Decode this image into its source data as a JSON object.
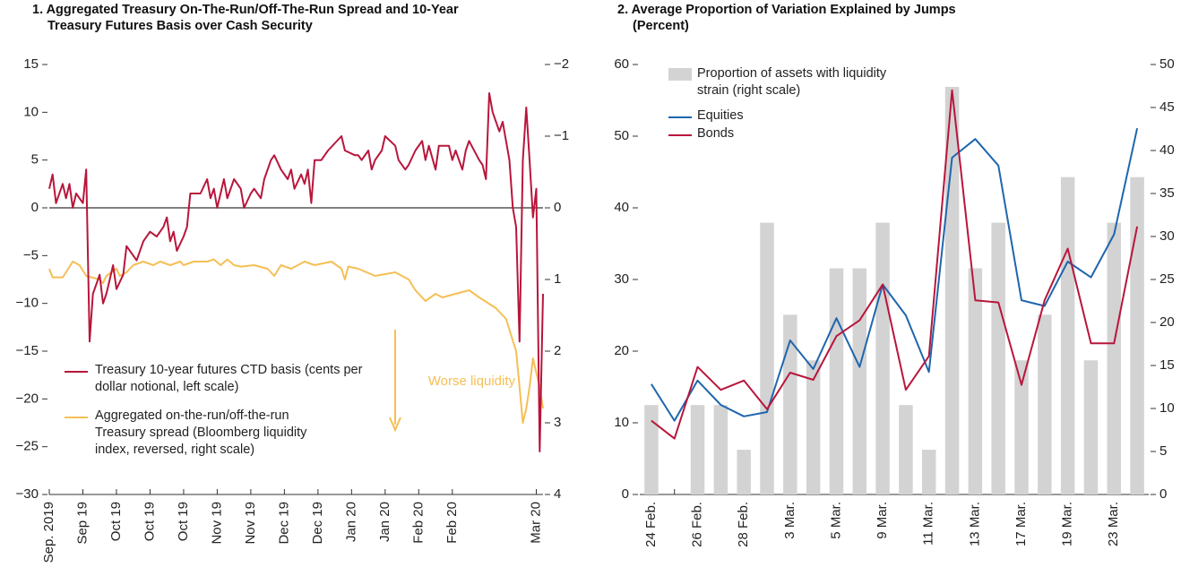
{
  "chart_data": [
    {
      "type": "line",
      "title": "1. Aggregated Treasury On-The-Run/Off-The-Run Spread and 10-Year Treasury Futures Basis over Cash Security",
      "annotation": "Worse liquidity",
      "xlim": [
        0,
        147
      ],
      "xticks": [
        {
          "value": 0,
          "label": "Sep. 2019"
        },
        {
          "value": 10,
          "label": "Sep 19"
        },
        {
          "value": 20,
          "label": "Oct 19"
        },
        {
          "value": 30,
          "label": "Oct 19"
        },
        {
          "value": 40,
          "label": "Oct 19"
        },
        {
          "value": 50,
          "label": "Nov 19"
        },
        {
          "value": 60,
          "label": "Nov 19"
        },
        {
          "value": 70,
          "label": "Dec 19"
        },
        {
          "value": 80,
          "label": "Dec 19"
        },
        {
          "value": 90,
          "label": "Jan 20"
        },
        {
          "value": 100,
          "label": "Jan 20"
        },
        {
          "value": 110,
          "label": "Feb 20"
        },
        {
          "value": 120,
          "label": "Feb 20"
        },
        {
          "value": 145,
          "label": "Mar 20"
        }
      ],
      "ylim": [
        -30,
        15
      ],
      "yticks": [
        {
          "value": -30,
          "label": "−30"
        },
        {
          "value": -25,
          "label": "−25"
        },
        {
          "value": -20,
          "label": "−20"
        },
        {
          "value": -15,
          "label": "−15"
        },
        {
          "value": -10,
          "label": "−10"
        },
        {
          "value": -5,
          "label": "−5"
        },
        0,
        5,
        10,
        15
      ],
      "y2lim": [
        4,
        -2
      ],
      "y2ticks": [
        {
          "value": -2,
          "label": "−2"
        },
        {
          "value": -1,
          "label": "−1"
        },
        0,
        1,
        2,
        3,
        4
      ],
      "series": [
        {
          "name": "Treasury 10-year futures CTD basis (cents per dollar notional, left scale)",
          "color": "#b8163c",
          "axis": "y",
          "x": [
            0,
            1,
            2,
            4,
            5,
            6,
            7,
            8,
            9,
            10,
            11,
            12,
            13,
            14,
            15,
            16,
            17,
            18,
            19,
            20,
            22,
            23,
            25,
            26,
            28,
            30,
            32,
            34,
            35,
            36,
            37,
            38,
            40,
            41,
            42,
            45,
            47,
            48,
            49,
            50,
            52,
            53,
            55,
            57,
            58,
            60,
            61,
            63,
            64,
            66,
            67,
            69,
            71,
            72,
            73,
            75,
            76,
            77,
            78,
            79,
            81,
            83,
            87,
            88,
            91,
            92,
            93,
            95,
            96,
            97,
            99,
            100,
            103,
            104,
            106,
            107,
            109,
            111,
            112,
            113,
            115,
            116,
            119,
            120,
            121,
            123,
            124,
            125,
            128,
            129,
            130,
            131,
            132,
            134,
            135,
            137,
            138,
            139,
            140,
            141,
            142,
            143,
            144,
            145,
            146,
            147
          ],
          "values": [
            2,
            3.5,
            0.5,
            2.5,
            1,
            2.5,
            0,
            1.5,
            1,
            0.5,
            4,
            -14,
            -9,
            -8,
            -7,
            -10,
            -9,
            -7.5,
            -6,
            -8.5,
            -7,
            -4,
            -5,
            -5.5,
            -3.5,
            -2.5,
            -3,
            -2,
            -1,
            -3.5,
            -2.5,
            -4.5,
            -3,
            -2,
            1.5,
            1.5,
            3,
            1,
            2,
            0,
            3,
            1,
            3,
            2,
            0,
            1.5,
            2,
            1,
            3,
            5,
            5.5,
            4,
            3,
            4,
            2,
            3.5,
            2.5,
            4,
            0.5,
            5,
            5,
            6,
            7.5,
            6,
            5.5,
            5.5,
            5,
            6,
            4,
            5,
            6,
            7.5,
            6.5,
            5,
            4,
            4.5,
            6,
            7,
            5,
            6.5,
            4,
            6.5,
            6.5,
            5,
            6,
            4,
            6,
            7,
            5,
            4.5,
            3,
            12,
            10,
            8,
            9,
            5,
            0,
            -2,
            -14,
            5,
            10.5,
            5,
            -1,
            2,
            -25.5,
            -9
          ]
        },
        {
          "name": "Aggregated on-the-run/off-the-run Treasury spread (Bloomberg liquidity index, reversed, right scale)",
          "color": "#f5bf55",
          "axis": "y2",
          "x": [
            0,
            1,
            4,
            5,
            7,
            9,
            11,
            15,
            16,
            17,
            20,
            21,
            23,
            25,
            28,
            31,
            33,
            36,
            39,
            40,
            43,
            47,
            49,
            51,
            53,
            55,
            57,
            61,
            65,
            67,
            69,
            72,
            76,
            79,
            84,
            87,
            88,
            89,
            92,
            97,
            103,
            107,
            109,
            112,
            115,
            117,
            121,
            125,
            128,
            133,
            136,
            139,
            140,
            141,
            142,
            143,
            144,
            146,
            147
          ],
          "values": [
            0.85,
            0.97,
            0.97,
            0.9,
            0.75,
            0.8,
            0.95,
            1.0,
            1.05,
            0.95,
            0.85,
            0.95,
            0.9,
            0.8,
            0.75,
            0.8,
            0.75,
            0.8,
            0.75,
            0.8,
            0.75,
            0.75,
            0.72,
            0.8,
            0.72,
            0.8,
            0.82,
            0.8,
            0.85,
            0.95,
            0.8,
            0.85,
            0.75,
            0.8,
            0.75,
            0.85,
            1.0,
            0.82,
            0.85,
            0.95,
            0.9,
            1.0,
            1.15,
            1.3,
            1.2,
            1.25,
            1.2,
            1.15,
            1.25,
            1.4,
            1.55,
            2.0,
            2.5,
            3.0,
            2.8,
            2.5,
            2.1,
            2.5,
            2.8
          ]
        }
      ]
    },
    {
      "type": "bar_line",
      "title": "2. Average Proportion of Variation Explained by Jumps",
      "subtitle": "(Percent)",
      "categories": [
        "24 Feb.",
        null,
        "26 Feb.",
        null,
        "28 Feb.",
        null,
        "3 Mar.",
        null,
        "5 Mar.",
        null,
        "9 Mar.",
        null,
        "11 Mar.",
        null,
        "13 Mar.",
        null,
        "17 Mar.",
        null,
        "19 Mar.",
        null,
        "23 Mar.",
        null
      ],
      "ylim": [
        0,
        60
      ],
      "yticks": [
        0,
        10,
        20,
        30,
        40,
        50,
        60
      ],
      "y2lim": [
        0,
        50
      ],
      "y2ticks": [
        0,
        5,
        10,
        15,
        20,
        25,
        30,
        35,
        40,
        45,
        50
      ],
      "series": [
        {
          "name": "Proportion of assets with liquidity strain (right scale)",
          "type": "bar",
          "color": "#d3d3d3",
          "axis": "y2",
          "values": [
            10.4,
            0,
            10.4,
            10.4,
            5.2,
            31.6,
            20.9,
            15.6,
            26.3,
            26.3,
            31.6,
            10.4,
            5.2,
            47.4,
            26.3,
            31.6,
            15.6,
            20.9,
            36.9,
            15.6,
            31.6,
            36.9
          ]
        },
        {
          "name": "Equities",
          "type": "line",
          "color": "#1f66ad",
          "axis": "y",
          "values": [
            15.4,
            10.3,
            15.9,
            12.5,
            10.9,
            11.5,
            21.5,
            17.5,
            24.6,
            17.8,
            29.3,
            25,
            17.1,
            47,
            49.6,
            45.9,
            27.1,
            26.3,
            32.5,
            30.3,
            36.3,
            51.1
          ]
        },
        {
          "name": "Bonds",
          "type": "line",
          "color": "#b8163c",
          "axis": "y",
          "values": [
            10.3,
            7.8,
            17.8,
            14.6,
            15.9,
            11.9,
            17,
            16,
            22.1,
            24.3,
            29.3,
            14.6,
            19.3,
            56.4,
            27.1,
            26.8,
            15.3,
            27.1,
            34.3,
            21.1,
            21.1,
            37.4
          ]
        }
      ]
    }
  ]
}
